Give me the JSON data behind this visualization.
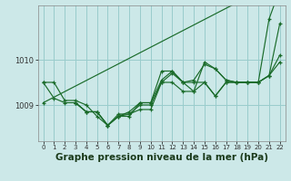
{
  "background_color": "#cce8e8",
  "grid_color": "#99cccc",
  "line_color": "#1a6b2a",
  "xlabel": "Graphe pression niveau de la mer (hPa)",
  "xlabel_fontsize": 7.5,
  "xlim": [
    -0.5,
    22.5
  ],
  "ylim": [
    1008.2,
    1011.2
  ],
  "yticks": [
    1009,
    1010
  ],
  "xticks": [
    0,
    1,
    2,
    3,
    4,
    5,
    6,
    7,
    8,
    9,
    10,
    11,
    12,
    13,
    14,
    15,
    16,
    17,
    18,
    19,
    20,
    21,
    22
  ],
  "lines": [
    {
      "x": [
        0,
        22
      ],
      "y": [
        1009.05,
        1011.75
      ]
    },
    {
      "x": [
        0,
        1,
        2,
        3,
        4,
        5,
        6,
        7,
        8,
        9,
        10,
        11,
        12,
        13,
        14,
        15,
        16,
        17,
        18,
        19,
        20,
        21,
        22
      ],
      "y": [
        1009.5,
        1009.5,
        1009.1,
        1009.1,
        1009.0,
        1008.75,
        1008.55,
        1008.8,
        1008.8,
        1009.0,
        1009.0,
        1009.5,
        1009.5,
        1009.3,
        1009.3,
        1009.5,
        1009.2,
        1009.5,
        1009.5,
        1009.5,
        1009.5,
        1010.9,
        1011.55
      ]
    },
    {
      "x": [
        0,
        1,
        2,
        3,
        4,
        5,
        6,
        7,
        8,
        9,
        10,
        11,
        12,
        13,
        14,
        15,
        16,
        17,
        18,
        19,
        20,
        21,
        22
      ],
      "y": [
        1009.5,
        1009.15,
        1009.05,
        1009.05,
        1008.85,
        1008.85,
        1008.55,
        1008.75,
        1008.8,
        1008.9,
        1008.9,
        1009.5,
        1009.7,
        1009.5,
        1009.3,
        1009.95,
        1009.8,
        1009.55,
        1009.5,
        1009.5,
        1009.5,
        1009.65,
        1010.1
      ]
    },
    {
      "x": [
        3,
        4,
        5,
        6,
        7,
        8,
        9,
        10,
        11,
        12,
        13,
        14,
        15,
        16,
        17,
        18,
        19,
        20,
        21,
        22
      ],
      "y": [
        1009.05,
        1008.85,
        1008.85,
        1008.55,
        1008.75,
        1008.85,
        1009.05,
        1009.05,
        1009.55,
        1009.75,
        1009.5,
        1009.55,
        1009.9,
        1009.8,
        1009.55,
        1009.5,
        1009.5,
        1009.5,
        1009.65,
        1009.95
      ]
    },
    {
      "x": [
        3,
        4,
        5,
        6,
        7,
        8,
        9,
        10,
        11,
        12,
        13,
        14,
        15,
        16,
        17,
        18,
        19,
        20,
        21,
        22
      ],
      "y": [
        1009.05,
        1008.85,
        1008.85,
        1008.55,
        1008.75,
        1008.75,
        1009.05,
        1009.05,
        1009.75,
        1009.75,
        1009.5,
        1009.5,
        1009.5,
        1009.2,
        1009.5,
        1009.5,
        1009.5,
        1009.5,
        1009.65,
        1010.8
      ]
    }
  ]
}
